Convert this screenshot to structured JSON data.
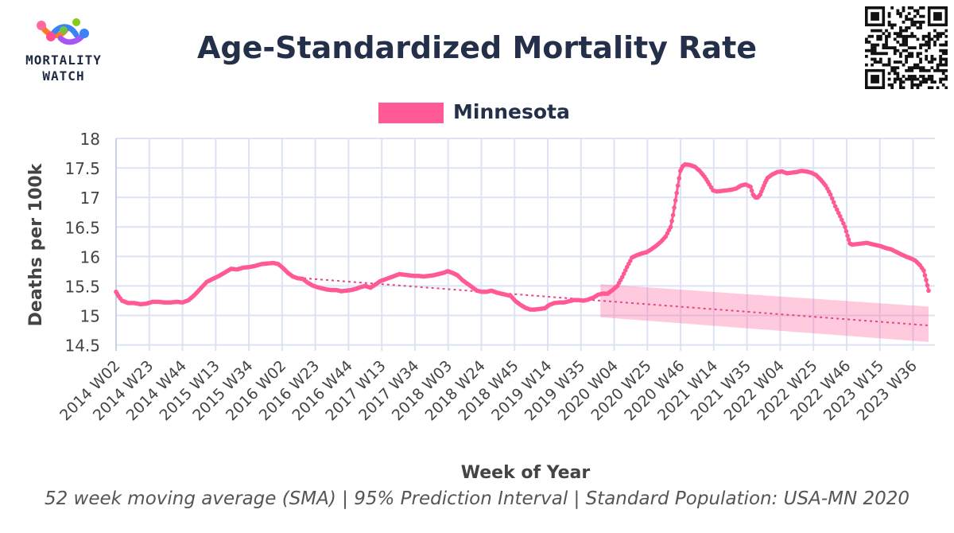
{
  "header": {
    "title": "Age-Standardized Mortality Rate",
    "logo_text_line1": "MORTALITY",
    "logo_text_line2": "WATCH"
  },
  "legend": {
    "label": "Minnesota",
    "color": "#ff5a96"
  },
  "footnote": "52 week moving average (SMA) | 95% Prediction Interval | Standard Population: USA-MN 2020",
  "chart_data": {
    "type": "line",
    "title": "Age-Standardized Mortality Rate",
    "xlabel": "Week of Year",
    "ylabel": "Deaths per 100k",
    "ylim": [
      14.4,
      18
    ],
    "yticks": [
      14.5,
      15,
      15.5,
      16,
      16.5,
      17,
      17.5,
      18
    ],
    "x_tick_labels": [
      "2014 W02",
      "2014 W23",
      "2014 W44",
      "2015 W13",
      "2015 W34",
      "2016 W02",
      "2016 W23",
      "2016 W44",
      "2017 W13",
      "2017 W34",
      "2018 W03",
      "2018 W24",
      "2018 W45",
      "2019 W14",
      "2019 W35",
      "2020 W04",
      "2020 W25",
      "2020 W46",
      "2021 W14",
      "2021 W35",
      "2022 W04",
      "2022 W25",
      "2022 W46",
      "2023 W15",
      "2023 W36"
    ],
    "x_tick_spacing_weeks": 21,
    "total_weeks": 516,
    "grid": true,
    "legend_position": "top-center",
    "series": [
      {
        "name": "Minnesota",
        "color": "#ff5a96",
        "keypoints": [
          [
            0,
            15.4
          ],
          [
            2,
            15.33
          ],
          [
            5,
            15.25
          ],
          [
            10,
            15.21
          ],
          [
            15,
            15.21
          ],
          [
            20,
            15.19
          ],
          [
            25,
            15.2
          ],
          [
            30,
            15.23
          ],
          [
            35,
            15.23
          ],
          [
            40,
            15.22
          ],
          [
            45,
            15.22
          ],
          [
            50,
            15.23
          ],
          [
            55,
            15.22
          ],
          [
            60,
            15.26
          ],
          [
            65,
            15.35
          ],
          [
            70,
            15.46
          ],
          [
            75,
            15.57
          ],
          [
            80,
            15.62
          ],
          [
            85,
            15.67
          ],
          [
            90,
            15.73
          ],
          [
            95,
            15.79
          ],
          [
            100,
            15.78
          ],
          [
            105,
            15.81
          ],
          [
            110,
            15.82
          ],
          [
            115,
            15.84
          ],
          [
            120,
            15.87
          ],
          [
            125,
            15.88
          ],
          [
            130,
            15.89
          ],
          [
            134,
            15.87
          ],
          [
            138,
            15.8
          ],
          [
            142,
            15.72
          ],
          [
            146,
            15.66
          ],
          [
            150,
            15.63
          ],
          [
            154,
            15.62
          ],
          [
            158,
            15.56
          ],
          [
            162,
            15.51
          ],
          [
            166,
            15.48
          ],
          [
            170,
            15.46
          ],
          [
            174,
            15.44
          ],
          [
            178,
            15.43
          ],
          [
            182,
            15.43
          ],
          [
            186,
            15.41
          ],
          [
            190,
            15.42
          ],
          [
            194,
            15.43
          ],
          [
            198,
            15.45
          ],
          [
            202,
            15.48
          ],
          [
            206,
            15.5
          ],
          [
            210,
            15.47
          ],
          [
            214,
            15.52
          ],
          [
            218,
            15.58
          ],
          [
            222,
            15.61
          ],
          [
            226,
            15.64
          ],
          [
            230,
            15.67
          ],
          [
            234,
            15.7
          ],
          [
            238,
            15.69
          ],
          [
            242,
            15.68
          ],
          [
            246,
            15.67
          ],
          [
            250,
            15.67
          ],
          [
            254,
            15.66
          ],
          [
            258,
            15.67
          ],
          [
            262,
            15.68
          ],
          [
            266,
            15.7
          ],
          [
            270,
            15.72
          ],
          [
            274,
            15.75
          ],
          [
            278,
            15.72
          ],
          [
            282,
            15.68
          ],
          [
            286,
            15.6
          ],
          [
            290,
            15.54
          ],
          [
            294,
            15.48
          ],
          [
            298,
            15.42
          ],
          [
            302,
            15.4
          ],
          [
            306,
            15.4
          ],
          [
            310,
            15.42
          ],
          [
            314,
            15.39
          ],
          [
            318,
            15.37
          ],
          [
            322,
            15.35
          ],
          [
            326,
            15.33
          ],
          [
            330,
            15.24
          ],
          [
            334,
            15.18
          ],
          [
            338,
            15.13
          ],
          [
            342,
            15.1
          ],
          [
            346,
            15.1
          ],
          [
            350,
            15.11
          ],
          [
            354,
            15.12
          ],
          [
            358,
            15.18
          ],
          [
            362,
            15.21
          ],
          [
            366,
            15.22
          ],
          [
            370,
            15.22
          ],
          [
            374,
            15.24
          ],
          [
            378,
            15.26
          ],
          [
            382,
            15.26
          ],
          [
            386,
            15.25
          ],
          [
            390,
            15.27
          ],
          [
            394,
            15.3
          ],
          [
            398,
            15.35
          ],
          [
            402,
            15.37
          ],
          [
            406,
            15.37
          ],
          [
            410,
            15.43
          ],
          [
            414,
            15.5
          ],
          [
            418,
            15.65
          ],
          [
            422,
            15.82
          ],
          [
            426,
            15.98
          ],
          [
            430,
            16.02
          ],
          [
            434,
            16.05
          ],
          [
            438,
            16.07
          ],
          [
            442,
            16.12
          ],
          [
            446,
            16.18
          ],
          [
            450,
            16.25
          ],
          [
            454,
            16.34
          ],
          [
            458,
            16.5
          ],
          [
            460,
            16.7
          ],
          [
            462,
            16.95
          ],
          [
            464,
            17.2
          ],
          [
            466,
            17.45
          ],
          [
            468,
            17.53
          ],
          [
            470,
            17.56
          ],
          [
            474,
            17.55
          ],
          [
            478,
            17.52
          ],
          [
            482,
            17.45
          ],
          [
            486,
            17.35
          ],
          [
            490,
            17.22
          ],
          [
            493,
            17.12
          ],
          [
            496,
            17.1
          ],
          [
            500,
            17.11
          ],
          [
            504,
            17.12
          ],
          [
            508,
            17.13
          ],
          [
            512,
            17.15
          ],
          [
            516,
            17.2
          ],
          [
            520,
            17.22
          ],
          [
            524,
            17.18
          ],
          [
            526,
            17.05
          ],
          [
            528,
            17.0
          ],
          [
            530,
            17.0
          ],
          [
            532,
            17.05
          ],
          [
            534,
            17.15
          ],
          [
            536,
            17.25
          ],
          [
            538,
            17.33
          ],
          [
            542,
            17.39
          ],
          [
            546,
            17.43
          ],
          [
            550,
            17.44
          ],
          [
            554,
            17.41
          ],
          [
            558,
            17.42
          ],
          [
            562,
            17.43
          ],
          [
            566,
            17.45
          ],
          [
            570,
            17.44
          ],
          [
            574,
            17.42
          ],
          [
            578,
            17.38
          ],
          [
            582,
            17.3
          ],
          [
            586,
            17.2
          ],
          [
            590,
            17.05
          ],
          [
            594,
            16.85
          ],
          [
            598,
            16.68
          ],
          [
            602,
            16.5
          ],
          [
            604,
            16.35
          ],
          [
            606,
            16.22
          ],
          [
            608,
            16.2
          ],
          [
            612,
            16.21
          ],
          [
            616,
            16.22
          ],
          [
            620,
            16.23
          ],
          [
            624,
            16.21
          ],
          [
            628,
            16.19
          ],
          [
            632,
            16.17
          ],
          [
            636,
            16.14
          ],
          [
            640,
            16.12
          ],
          [
            644,
            16.08
          ],
          [
            648,
            16.04
          ],
          [
            652,
            16.0
          ],
          [
            656,
            15.97
          ],
          [
            660,
            15.93
          ],
          [
            664,
            15.85
          ],
          [
            667,
            15.76
          ],
          [
            669,
            15.6
          ],
          [
            671,
            15.42
          ]
        ]
      }
    ],
    "baseline": {
      "name": "trend",
      "start": [
        155,
        15.63
      ],
      "end": [
        671,
        14.83
      ]
    },
    "prediction_interval": {
      "name": "95% Prediction Interval",
      "start_week": 400,
      "end_week": 671,
      "upper": [
        15.53,
        15.15
      ],
      "lower": [
        14.97,
        14.55
      ]
    }
  }
}
